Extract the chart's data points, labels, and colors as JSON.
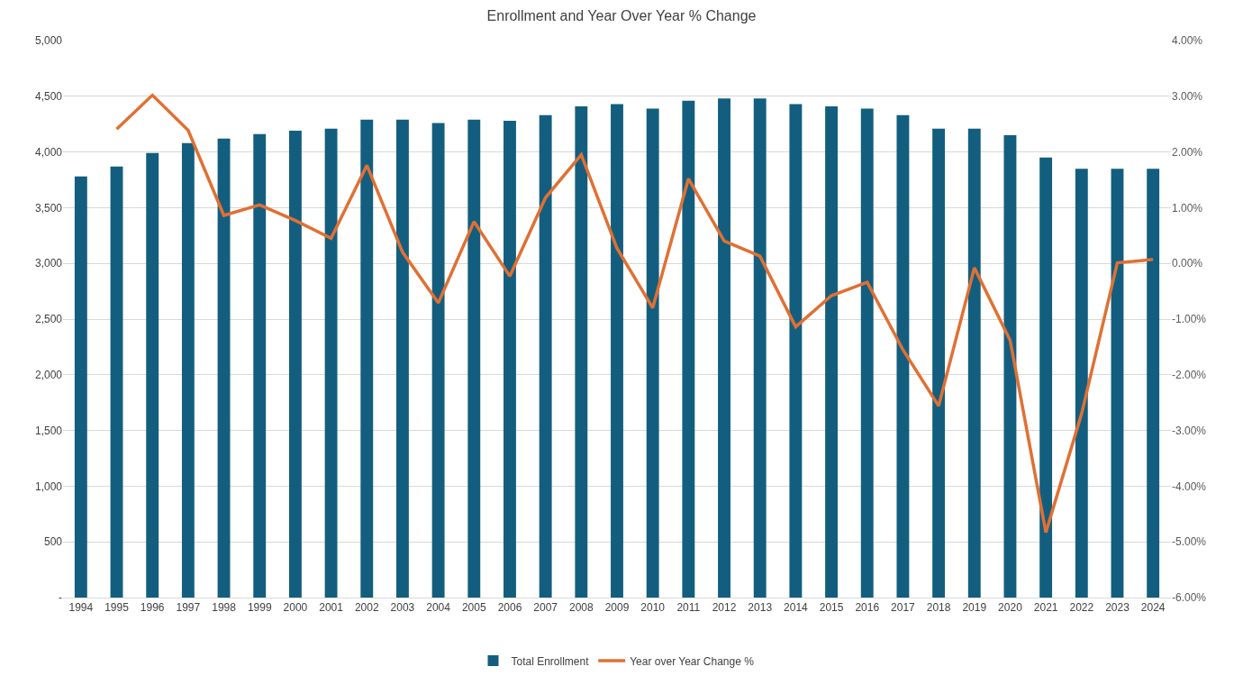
{
  "chart_data": {
    "type": "bar",
    "title": "Enrollment and Year Over Year % Change",
    "categories": [
      "1994",
      "1995",
      "1996",
      "1997",
      "1998",
      "1999",
      "2000",
      "2001",
      "2002",
      "2003",
      "2004",
      "2005",
      "2006",
      "2007",
      "2008",
      "2009",
      "2010",
      "2011",
      "2012",
      "2013",
      "2014",
      "2015",
      "2016",
      "2017",
      "2018",
      "2019",
      "2020",
      "2021",
      "2022",
      "2023",
      "2024"
    ],
    "series": [
      {
        "name": "Total Enrollment",
        "color": "#135e7f",
        "values": [
          3780,
          3870,
          3990,
          4080,
          4120,
          4160,
          4190,
          4210,
          4290,
          4290,
          4260,
          4290,
          4280,
          4330,
          4410,
          4430,
          4390,
          4460,
          4480,
          4480,
          4430,
          4410,
          4390,
          4330,
          4210,
          4210,
          4150,
          3950,
          3850,
          3850,
          3850
        ]
      },
      {
        "name": "Year over Year Change %",
        "type": "line",
        "axis": "y2",
        "color": "#e07033",
        "values": [
          null,
          2.41,
          3.02,
          2.39,
          0.86,
          1.05,
          0.77,
          0.45,
          1.76,
          0.2,
          -0.71,
          0.75,
          -0.23,
          1.18,
          1.95,
          0.27,
          -0.8,
          1.52,
          0.4,
          0.13,
          -1.14,
          -0.58,
          -0.34,
          -1.55,
          -2.56,
          -0.08,
          -1.38,
          -4.83,
          -2.7,
          0.01,
          0.07
        ]
      }
    ],
    "ylim": [
      0,
      5000
    ],
    "yticks": [
      {
        "value": 0,
        "label": "-"
      },
      {
        "value": 500,
        "label": "500"
      },
      {
        "value": 1000,
        "label": "1,000"
      },
      {
        "value": 1500,
        "label": "1,500"
      },
      {
        "value": 2000,
        "label": "2,000"
      },
      {
        "value": 2500,
        "label": "2,500"
      },
      {
        "value": 3000,
        "label": "3,000"
      },
      {
        "value": 3500,
        "label": "3,500"
      },
      {
        "value": 4000,
        "label": "4,000"
      },
      {
        "value": 4500,
        "label": "4,500"
      },
      {
        "value": 5000,
        "label": "5,000"
      }
    ],
    "y2lim": [
      -6,
      4
    ],
    "y2ticks": [
      {
        "value": -6,
        "label": "-6.00%"
      },
      {
        "value": -5,
        "label": "-5.00%"
      },
      {
        "value": -4,
        "label": "-4.00%"
      },
      {
        "value": -3,
        "label": "-3.00%"
      },
      {
        "value": -2,
        "label": "-2.00%"
      },
      {
        "value": -1,
        "label": "-1.00%"
      },
      {
        "value": 0,
        "label": "0.00%"
      },
      {
        "value": 1,
        "label": "1.00%"
      },
      {
        "value": 2,
        "label": "2.00%"
      },
      {
        "value": 3,
        "label": "3.00%"
      },
      {
        "value": 4,
        "label": "4.00%"
      }
    ],
    "grid": "y",
    "legend": "bottom",
    "marker": "none",
    "line_style": "solid"
  }
}
